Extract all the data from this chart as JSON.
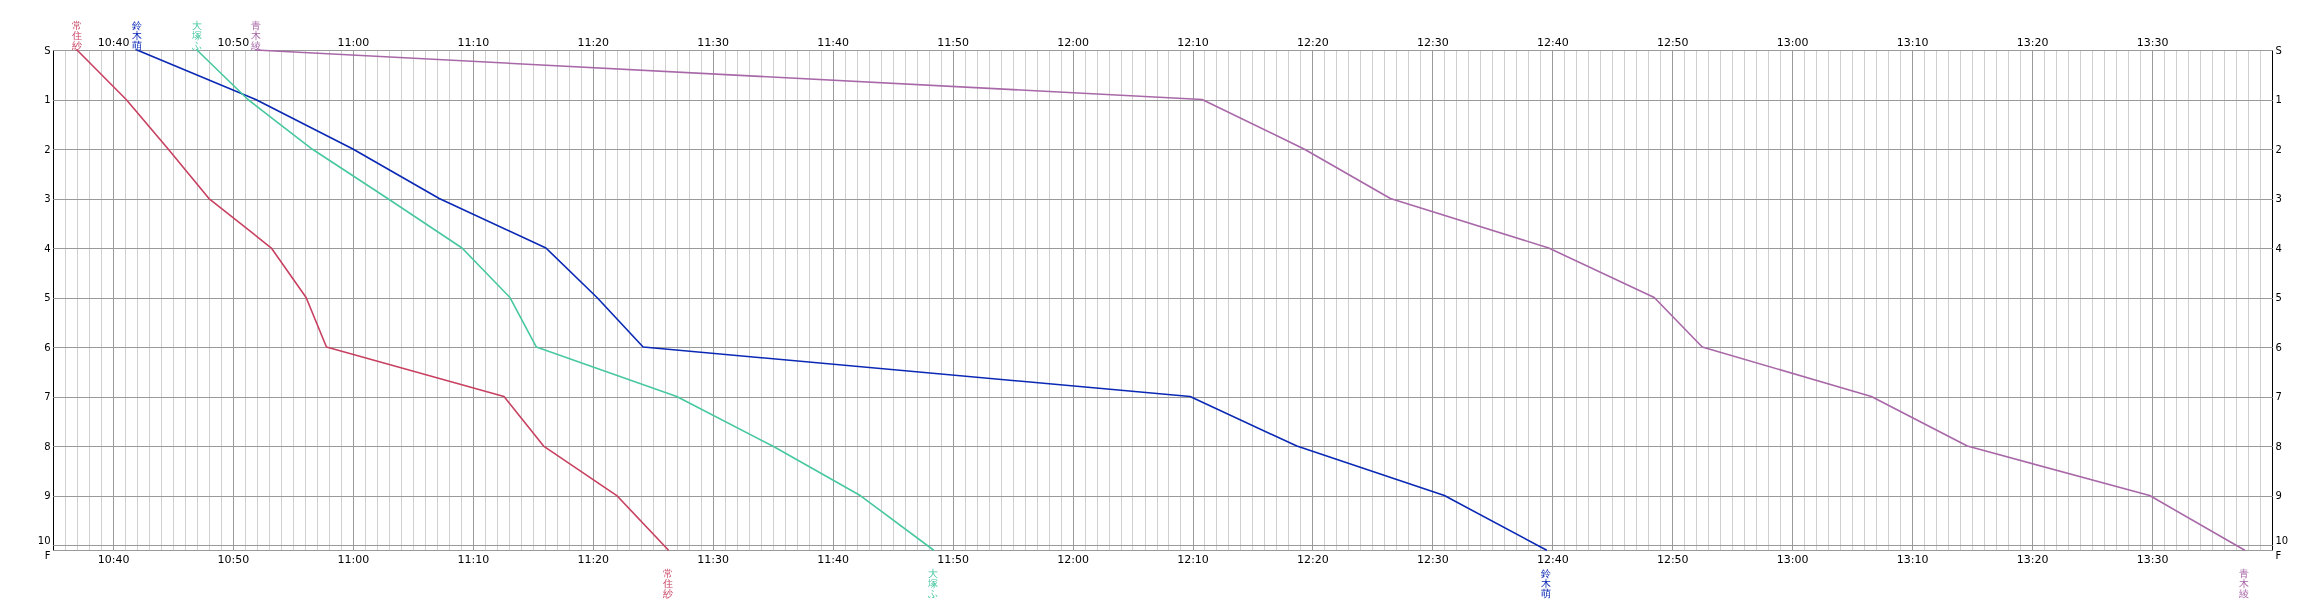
{
  "chart_data": {
    "type": "line",
    "grid": true,
    "xlim": [
      10.5833,
      13.6667
    ],
    "ylim": [
      10.1,
      0
    ],
    "x2lim": [
      10.5833,
      13.6667
    ],
    "y2lim": [
      10.1,
      0
    ],
    "xticks": [
      {
        "value": 10.6,
        "label": null
      },
      {
        "value": 10.6167,
        "label": null
      },
      {
        "value": 10.6333,
        "label": null
      },
      {
        "value": 10.65,
        "label": null
      },
      {
        "value": 10.6667,
        "label": "10:40"
      },
      {
        "value": 10.6833,
        "label": null
      },
      {
        "value": 10.7,
        "label": null
      },
      {
        "value": 10.7167,
        "label": null
      },
      {
        "value": 10.7333,
        "label": null
      },
      {
        "value": 10.75,
        "label": null
      },
      {
        "value": 10.7667,
        "label": null
      },
      {
        "value": 10.7833,
        "label": null
      },
      {
        "value": 10.8,
        "label": null
      },
      {
        "value": 10.8167,
        "label": null
      },
      {
        "value": 10.8333,
        "label": "10:50"
      },
      {
        "value": 10.85,
        "label": null
      },
      {
        "value": 10.8667,
        "label": null
      },
      {
        "value": 10.8833,
        "label": null
      },
      {
        "value": 10.9,
        "label": null
      },
      {
        "value": 10.9167,
        "label": null
      },
      {
        "value": 10.9333,
        "label": null
      },
      {
        "value": 10.95,
        "label": null
      },
      {
        "value": 10.9667,
        "label": null
      },
      {
        "value": 10.9833,
        "label": null
      },
      {
        "value": 11,
        "label": "11:00"
      },
      {
        "value": 11.0167,
        "label": null
      },
      {
        "value": 11.0333,
        "label": null
      },
      {
        "value": 11.05,
        "label": null
      },
      {
        "value": 11.0667,
        "label": null
      },
      {
        "value": 11.0833,
        "label": null
      },
      {
        "value": 11.1,
        "label": null
      },
      {
        "value": 11.1167,
        "label": null
      },
      {
        "value": 11.1333,
        "label": null
      },
      {
        "value": 11.15,
        "label": null
      },
      {
        "value": 11.1667,
        "label": "11:10"
      },
      {
        "value": 11.1833,
        "label": null
      },
      {
        "value": 11.2,
        "label": null
      },
      {
        "value": 11.2167,
        "label": null
      },
      {
        "value": 11.2333,
        "label": null
      },
      {
        "value": 11.25,
        "label": null
      },
      {
        "value": 11.2667,
        "label": null
      },
      {
        "value": 11.2833,
        "label": null
      },
      {
        "value": 11.3,
        "label": null
      },
      {
        "value": 11.3167,
        "label": null
      },
      {
        "value": 11.3333,
        "label": "11:20"
      },
      {
        "value": 11.35,
        "label": null
      },
      {
        "value": 11.3667,
        "label": null
      },
      {
        "value": 11.3833,
        "label": null
      },
      {
        "value": 11.4,
        "label": null
      },
      {
        "value": 11.4167,
        "label": null
      },
      {
        "value": 11.4333,
        "label": null
      },
      {
        "value": 11.45,
        "label": null
      },
      {
        "value": 11.4667,
        "label": null
      },
      {
        "value": 11.4833,
        "label": null
      },
      {
        "value": 11.5,
        "label": "11:30"
      },
      {
        "value": 11.5167,
        "label": null
      },
      {
        "value": 11.5333,
        "label": null
      },
      {
        "value": 11.55,
        "label": null
      },
      {
        "value": 11.5667,
        "label": null
      },
      {
        "value": 11.5833,
        "label": null
      },
      {
        "value": 11.6,
        "label": null
      },
      {
        "value": 11.6167,
        "label": null
      },
      {
        "value": 11.6333,
        "label": null
      },
      {
        "value": 11.65,
        "label": null
      },
      {
        "value": 11.6667,
        "label": "11:40"
      },
      {
        "value": 11.6833,
        "label": null
      },
      {
        "value": 11.7,
        "label": null
      },
      {
        "value": 11.7167,
        "label": null
      },
      {
        "value": 11.7333,
        "label": null
      },
      {
        "value": 11.75,
        "label": null
      },
      {
        "value": 11.7667,
        "label": null
      },
      {
        "value": 11.7833,
        "label": null
      },
      {
        "value": 11.8,
        "label": null
      },
      {
        "value": 11.8167,
        "label": null
      },
      {
        "value": 11.8333,
        "label": "11:50"
      },
      {
        "value": 11.85,
        "label": null
      },
      {
        "value": 11.8667,
        "label": null
      },
      {
        "value": 11.8833,
        "label": null
      },
      {
        "value": 11.9,
        "label": null
      },
      {
        "value": 11.9167,
        "label": null
      },
      {
        "value": 11.9333,
        "label": null
      },
      {
        "value": 11.95,
        "label": null
      },
      {
        "value": 11.9667,
        "label": null
      },
      {
        "value": 11.9833,
        "label": null
      },
      {
        "value": 12,
        "label": "12:00"
      },
      {
        "value": 12.0167,
        "label": null
      },
      {
        "value": 12.0333,
        "label": null
      },
      {
        "value": 12.05,
        "label": null
      },
      {
        "value": 12.0667,
        "label": null
      },
      {
        "value": 12.0833,
        "label": null
      },
      {
        "value": 12.1,
        "label": null
      },
      {
        "value": 12.1167,
        "label": null
      },
      {
        "value": 12.1333,
        "label": null
      },
      {
        "value": 12.15,
        "label": null
      },
      {
        "value": 12.1667,
        "label": "12:10"
      },
      {
        "value": 12.1833,
        "label": null
      },
      {
        "value": 12.2,
        "label": null
      },
      {
        "value": 12.2167,
        "label": null
      },
      {
        "value": 12.2333,
        "label": null
      },
      {
        "value": 12.25,
        "label": null
      },
      {
        "value": 12.2667,
        "label": null
      },
      {
        "value": 12.2833,
        "label": null
      },
      {
        "value": 12.3,
        "label": null
      },
      {
        "value": 12.3167,
        "label": null
      },
      {
        "value": 12.3333,
        "label": "12:20"
      },
      {
        "value": 12.35,
        "label": null
      },
      {
        "value": 12.3667,
        "label": null
      },
      {
        "value": 12.3833,
        "label": null
      },
      {
        "value": 12.4,
        "label": null
      },
      {
        "value": 12.4167,
        "label": null
      },
      {
        "value": 12.4333,
        "label": null
      },
      {
        "value": 12.45,
        "label": null
      },
      {
        "value": 12.4667,
        "label": null
      },
      {
        "value": 12.4833,
        "label": null
      },
      {
        "value": 12.5,
        "label": "12:30"
      },
      {
        "value": 12.5167,
        "label": null
      },
      {
        "value": 12.5333,
        "label": null
      },
      {
        "value": 12.55,
        "label": null
      },
      {
        "value": 12.5667,
        "label": null
      },
      {
        "value": 12.5833,
        "label": null
      },
      {
        "value": 12.6,
        "label": null
      },
      {
        "value": 12.6167,
        "label": null
      },
      {
        "value": 12.6333,
        "label": null
      },
      {
        "value": 12.65,
        "label": null
      },
      {
        "value": 12.6667,
        "label": "12:40"
      },
      {
        "value": 12.6833,
        "label": null
      },
      {
        "value": 12.7,
        "label": null
      },
      {
        "value": 12.7167,
        "label": null
      },
      {
        "value": 12.7333,
        "label": null
      },
      {
        "value": 12.75,
        "label": null
      },
      {
        "value": 12.7667,
        "label": null
      },
      {
        "value": 12.7833,
        "label": null
      },
      {
        "value": 12.8,
        "label": null
      },
      {
        "value": 12.8167,
        "label": null
      },
      {
        "value": 12.8333,
        "label": "12:50"
      },
      {
        "value": 12.85,
        "label": null
      },
      {
        "value": 12.8667,
        "label": null
      },
      {
        "value": 12.8833,
        "label": null
      },
      {
        "value": 12.9,
        "label": null
      },
      {
        "value": 12.9167,
        "label": null
      },
      {
        "value": 12.9333,
        "label": null
      },
      {
        "value": 12.95,
        "label": null
      },
      {
        "value": 12.9667,
        "label": null
      },
      {
        "value": 12.9833,
        "label": null
      },
      {
        "value": 13,
        "label": "13:00"
      },
      {
        "value": 13.0167,
        "label": null
      },
      {
        "value": 13.0333,
        "label": null
      },
      {
        "value": 13.05,
        "label": null
      },
      {
        "value": 13.0667,
        "label": null
      },
      {
        "value": 13.0833,
        "label": null
      },
      {
        "value": 13.1,
        "label": null
      },
      {
        "value": 13.1167,
        "label": null
      },
      {
        "value": 13.1333,
        "label": null
      },
      {
        "value": 13.15,
        "label": null
      },
      {
        "value": 13.1667,
        "label": "13:10"
      },
      {
        "value": 13.1833,
        "label": null
      },
      {
        "value": 13.2,
        "label": null
      },
      {
        "value": 13.2167,
        "label": null
      },
      {
        "value": 13.2333,
        "label": null
      },
      {
        "value": 13.25,
        "label": null
      },
      {
        "value": 13.2667,
        "label": null
      },
      {
        "value": 13.2833,
        "label": null
      },
      {
        "value": 13.3,
        "label": null
      },
      {
        "value": 13.3167,
        "label": null
      },
      {
        "value": 13.3333,
        "label": "13:20"
      },
      {
        "value": 13.35,
        "label": null
      },
      {
        "value": 13.3667,
        "label": null
      },
      {
        "value": 13.3833,
        "label": null
      },
      {
        "value": 13.4,
        "label": null
      },
      {
        "value": 13.4167,
        "label": null
      },
      {
        "value": 13.4333,
        "label": null
      },
      {
        "value": 13.45,
        "label": null
      },
      {
        "value": 13.4667,
        "label": null
      },
      {
        "value": 13.4833,
        "label": null
      },
      {
        "value": 13.5,
        "label": "13:30"
      },
      {
        "value": 13.5167,
        "label": null
      },
      {
        "value": 13.5333,
        "label": null
      },
      {
        "value": 13.55,
        "label": null
      },
      {
        "value": 13.5667,
        "label": null
      },
      {
        "value": 13.5833,
        "label": null
      },
      {
        "value": 13.6,
        "label": null
      },
      {
        "value": 13.6167,
        "label": null
      },
      {
        "value": 13.6333,
        "label": null
      },
      {
        "value": 13.65,
        "label": null
      }
    ],
    "x2ticks": [
      {
        "value": 10.6,
        "label": null
      },
      {
        "value": 10.6167,
        "label": null
      },
      {
        "value": 10.6333,
        "label": null
      },
      {
        "value": 10.65,
        "label": null
      },
      {
        "value": 10.6667,
        "label": "10:40"
      },
      {
        "value": 10.6833,
        "label": null
      },
      {
        "value": 10.7,
        "label": null
      },
      {
        "value": 10.7167,
        "label": null
      },
      {
        "value": 10.7333,
        "label": null
      },
      {
        "value": 10.75,
        "label": null
      },
      {
        "value": 10.7667,
        "label": null
      },
      {
        "value": 10.7833,
        "label": null
      },
      {
        "value": 10.8,
        "label": null
      },
      {
        "value": 10.8167,
        "label": null
      },
      {
        "value": 10.8333,
        "label": "10:50"
      },
      {
        "value": 10.85,
        "label": null
      },
      {
        "value": 10.8667,
        "label": null
      },
      {
        "value": 10.8833,
        "label": null
      },
      {
        "value": 10.9,
        "label": null
      },
      {
        "value": 10.9167,
        "label": null
      },
      {
        "value": 10.9333,
        "label": null
      },
      {
        "value": 10.95,
        "label": null
      },
      {
        "value": 10.9667,
        "label": null
      },
      {
        "value": 10.9833,
        "label": null
      },
      {
        "value": 11,
        "label": "11:00"
      },
      {
        "value": 11.0167,
        "label": null
      },
      {
        "value": 11.0333,
        "label": null
      },
      {
        "value": 11.05,
        "label": null
      },
      {
        "value": 11.0667,
        "label": null
      },
      {
        "value": 11.0833,
        "label": null
      },
      {
        "value": 11.1,
        "label": null
      },
      {
        "value": 11.1167,
        "label": null
      },
      {
        "value": 11.1333,
        "label": null
      },
      {
        "value": 11.15,
        "label": null
      },
      {
        "value": 11.1667,
        "label": "11:10"
      },
      {
        "value": 11.1833,
        "label": null
      },
      {
        "value": 11.2,
        "label": null
      },
      {
        "value": 11.2167,
        "label": null
      },
      {
        "value": 11.2333,
        "label": null
      },
      {
        "value": 11.25,
        "label": null
      },
      {
        "value": 11.2667,
        "label": null
      },
      {
        "value": 11.2833,
        "label": null
      },
      {
        "value": 11.3,
        "label": null
      },
      {
        "value": 11.3167,
        "label": null
      },
      {
        "value": 11.3333,
        "label": "11:20"
      },
      {
        "value": 11.35,
        "label": null
      },
      {
        "value": 11.3667,
        "label": null
      },
      {
        "value": 11.3833,
        "label": null
      },
      {
        "value": 11.4,
        "label": null
      },
      {
        "value": 11.4167,
        "label": null
      },
      {
        "value": 11.4333,
        "label": null
      },
      {
        "value": 11.45,
        "label": null
      },
      {
        "value": 11.4667,
        "label": null
      },
      {
        "value": 11.4833,
        "label": null
      },
      {
        "value": 11.5,
        "label": "11:30"
      },
      {
        "value": 11.5167,
        "label": null
      },
      {
        "value": 11.5333,
        "label": null
      },
      {
        "value": 11.55,
        "label": null
      },
      {
        "value": 11.5667,
        "label": null
      },
      {
        "value": 11.5833,
        "label": null
      },
      {
        "value": 11.6,
        "label": null
      },
      {
        "value": 11.6167,
        "label": null
      },
      {
        "value": 11.6333,
        "label": null
      },
      {
        "value": 11.65,
        "label": null
      },
      {
        "value": 11.6667,
        "label": "11:40"
      },
      {
        "value": 11.6833,
        "label": null
      },
      {
        "value": 11.7,
        "label": null
      },
      {
        "value": 11.7167,
        "label": null
      },
      {
        "value": 11.7333,
        "label": null
      },
      {
        "value": 11.75,
        "label": null
      },
      {
        "value": 11.7667,
        "label": null
      },
      {
        "value": 11.7833,
        "label": null
      },
      {
        "value": 11.8,
        "label": null
      },
      {
        "value": 11.8167,
        "label": null
      },
      {
        "value": 11.8333,
        "label": "11:50"
      },
      {
        "value": 11.85,
        "label": null
      },
      {
        "value": 11.8667,
        "label": null
      },
      {
        "value": 11.8833,
        "label": null
      },
      {
        "value": 11.9,
        "label": null
      },
      {
        "value": 11.9167,
        "label": null
      },
      {
        "value": 11.9333,
        "label": null
      },
      {
        "value": 11.95,
        "label": null
      },
      {
        "value": 11.9667,
        "label": null
      },
      {
        "value": 11.9833,
        "label": null
      },
      {
        "value": 12,
        "label": "12:00"
      },
      {
        "value": 12.0167,
        "label": null
      },
      {
        "value": 12.0333,
        "label": null
      },
      {
        "value": 12.05,
        "label": null
      },
      {
        "value": 12.0667,
        "label": null
      },
      {
        "value": 12.0833,
        "label": null
      },
      {
        "value": 12.1,
        "label": null
      },
      {
        "value": 12.1167,
        "label": null
      },
      {
        "value": 12.1333,
        "label": null
      },
      {
        "value": 12.15,
        "label": null
      },
      {
        "value": 12.1667,
        "label": "12:10"
      },
      {
        "value": 12.1833,
        "label": null
      },
      {
        "value": 12.2,
        "label": null
      },
      {
        "value": 12.2167,
        "label": null
      },
      {
        "value": 12.2333,
        "label": null
      },
      {
        "value": 12.25,
        "label": null
      },
      {
        "value": 12.2667,
        "label": null
      },
      {
        "value": 12.2833,
        "label": null
      },
      {
        "value": 12.3,
        "label": null
      },
      {
        "value": 12.3167,
        "label": null
      },
      {
        "value": 12.3333,
        "label": "12:20"
      },
      {
        "value": 12.35,
        "label": null
      },
      {
        "value": 12.3667,
        "label": null
      },
      {
        "value": 12.3833,
        "label": null
      },
      {
        "value": 12.4,
        "label": null
      },
      {
        "value": 12.4167,
        "label": null
      },
      {
        "value": 12.4333,
        "label": null
      },
      {
        "value": 12.45,
        "label": null
      },
      {
        "value": 12.4667,
        "label": null
      },
      {
        "value": 12.4833,
        "label": null
      },
      {
        "value": 12.5,
        "label": "12:30"
      },
      {
        "value": 12.5167,
        "label": null
      },
      {
        "value": 12.5333,
        "label": null
      },
      {
        "value": 12.55,
        "label": null
      },
      {
        "value": 12.5667,
        "label": null
      },
      {
        "value": 12.5833,
        "label": null
      },
      {
        "value": 12.6,
        "label": null
      },
      {
        "value": 12.6167,
        "label": null
      },
      {
        "value": 12.6333,
        "label": null
      },
      {
        "value": 12.65,
        "label": null
      },
      {
        "value": 12.6667,
        "label": "12:40"
      },
      {
        "value": 12.6833,
        "label": null
      },
      {
        "value": 12.7,
        "label": null
      },
      {
        "value": 12.7167,
        "label": null
      },
      {
        "value": 12.7333,
        "label": null
      },
      {
        "value": 12.75,
        "label": null
      },
      {
        "value": 12.7667,
        "label": null
      },
      {
        "value": 12.7833,
        "label": null
      },
      {
        "value": 12.8,
        "label": null
      },
      {
        "value": 12.8167,
        "label": null
      },
      {
        "value": 12.8333,
        "label": "12:50"
      },
      {
        "value": 12.85,
        "label": null
      },
      {
        "value": 12.8667,
        "label": null
      },
      {
        "value": 12.8833,
        "label": null
      },
      {
        "value": 12.9,
        "label": null
      },
      {
        "value": 12.9167,
        "label": null
      },
      {
        "value": 12.9333,
        "label": null
      },
      {
        "value": 12.95,
        "label": null
      },
      {
        "value": 12.9667,
        "label": null
      },
      {
        "value": 12.9833,
        "label": null
      },
      {
        "value": 13,
        "label": "13:00"
      },
      {
        "value": 13.0167,
        "label": null
      },
      {
        "value": 13.0333,
        "label": null
      },
      {
        "value": 13.05,
        "label": null
      },
      {
        "value": 13.0667,
        "label": null
      },
      {
        "value": 13.0833,
        "label": null
      },
      {
        "value": 13.1,
        "label": null
      },
      {
        "value": 13.1167,
        "label": null
      },
      {
        "value": 13.1333,
        "label": null
      },
      {
        "value": 13.15,
        "label": null
      },
      {
        "value": 13.1667,
        "label": "13:10"
      },
      {
        "value": 13.1833,
        "label": null
      },
      {
        "value": 13.2,
        "label": null
      },
      {
        "value": 13.2167,
        "label": null
      },
      {
        "value": 13.2333,
        "label": null
      },
      {
        "value": 13.25,
        "label": null
      },
      {
        "value": 13.2667,
        "label": null
      },
      {
        "value": 13.2833,
        "label": null
      },
      {
        "value": 13.3,
        "label": null
      },
      {
        "value": 13.3167,
        "label": null
      },
      {
        "value": 13.3333,
        "label": "13:20"
      },
      {
        "value": 13.35,
        "label": null
      },
      {
        "value": 13.3667,
        "label": null
      },
      {
        "value": 13.3833,
        "label": null
      },
      {
        "value": 13.4,
        "label": null
      },
      {
        "value": 13.4167,
        "label": null
      },
      {
        "value": 13.4333,
        "label": null
      },
      {
        "value": 13.45,
        "label": null
      },
      {
        "value": 13.4667,
        "label": null
      },
      {
        "value": 13.4833,
        "label": null
      },
      {
        "value": 13.5,
        "label": "13:30"
      },
      {
        "value": 13.5167,
        "label": null
      },
      {
        "value": 13.5333,
        "label": null
      },
      {
        "value": 13.55,
        "label": null
      },
      {
        "value": 13.5667,
        "label": null
      },
      {
        "value": 13.5833,
        "label": null
      },
      {
        "value": 13.6,
        "label": null
      },
      {
        "value": 13.6167,
        "label": null
      },
      {
        "value": 13.6333,
        "label": null
      },
      {
        "value": 13.65,
        "label": null
      }
    ],
    "yticks": [
      {
        "value": 0,
        "label": "S"
      },
      1,
      2,
      3,
      4,
      5,
      6,
      7,
      8,
      9,
      10,
      {
        "value": 10.1,
        "label": "F"
      }
    ],
    "y2ticks": [
      {
        "value": 0,
        "label": "S"
      },
      1,
      2,
      3,
      4,
      5,
      6,
      7,
      8,
      9,
      10,
      {
        "value": 10.1,
        "label": "F"
      }
    ],
    "series": [
      {
        "name": "常住紗",
        "color": "#c84060",
        "x": [
          10.6167,
          10.685,
          10.7433,
          10.8,
          10.8867,
          10.935,
          10.9633,
          11.21,
          11.265,
          11.3667,
          11.4383
        ],
        "values": [
          0,
          1,
          2,
          3,
          4,
          5,
          6,
          7,
          8,
          9,
          10.1
        ]
      },
      {
        "name": "鈴木萌",
        "color": "#0a28b4",
        "x": [
          10.7,
          10.865,
          11,
          11.12,
          11.2683,
          11.3392,
          11.4033,
          12.1633,
          12.3117,
          12.5167,
          12.6583
        ],
        "values": [
          0,
          1,
          2,
          3,
          4,
          5,
          6,
          7,
          8,
          9,
          10.1
        ]
      },
      {
        "name": "大塚ふ",
        "color": "#48c8a0",
        "x": [
          10.7833,
          10.8542,
          10.9433,
          11.0483,
          11.1517,
          11.2183,
          11.255,
          11.45,
          11.5833,
          11.705,
          11.8067
        ],
        "values": [
          0,
          1,
          2,
          3,
          4,
          5,
          6,
          7,
          8,
          9,
          10.1
        ]
      },
      {
        "name": "青木綾",
        "color": "#a868a8",
        "x": [
          10.865,
          12.18,
          12.3217,
          12.4417,
          12.6617,
          12.8083,
          12.875,
          13.11,
          13.2433,
          13.4967,
          13.6283
        ],
        "values": [
          0,
          1,
          2,
          3,
          4,
          5,
          6,
          7,
          8,
          9,
          10.1
        ]
      }
    ]
  }
}
